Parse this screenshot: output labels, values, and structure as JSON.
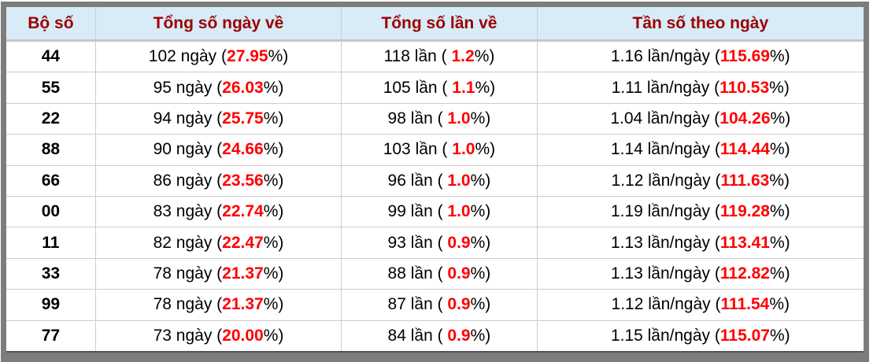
{
  "colors": {
    "header_bg": "#d8ecf8",
    "header_text": "#9b0000",
    "highlight_red": "#ff0000",
    "body_text": "#000000",
    "frame_gray": "#7d7d7d",
    "grid_line": "#cccccc"
  },
  "format": {
    "open_paren": "(",
    "open_paren_spaced": "( ",
    "close_pct": "%)"
  },
  "units": {
    "days": "ngày",
    "times": "lần",
    "freq": "lần/ngày"
  },
  "chart_data": {
    "type": "table",
    "title": "",
    "headers": [
      "Bộ số",
      "Tổng số ngày về",
      "Tổng số lần về",
      "Tần số theo ngày"
    ],
    "rows": [
      {
        "pair": "44",
        "days": "102",
        "days_pct": "27.95",
        "times": "118",
        "times_pct": "1.2",
        "freq": "1.16",
        "freq_pct": "115.69"
      },
      {
        "pair": "55",
        "days": "95",
        "days_pct": "26.03",
        "times": "105",
        "times_pct": "1.1",
        "freq": "1.11",
        "freq_pct": "110.53"
      },
      {
        "pair": "22",
        "days": "94",
        "days_pct": "25.75",
        "times": "98",
        "times_pct": "1.0",
        "freq": "1.04",
        "freq_pct": "104.26"
      },
      {
        "pair": "88",
        "days": "90",
        "days_pct": "24.66",
        "times": "103",
        "times_pct": "1.0",
        "freq": "1.14",
        "freq_pct": "114.44"
      },
      {
        "pair": "66",
        "days": "86",
        "days_pct": "23.56",
        "times": "96",
        "times_pct": "1.0",
        "freq": "1.12",
        "freq_pct": "111.63"
      },
      {
        "pair": "00",
        "days": "83",
        "days_pct": "22.74",
        "times": "99",
        "times_pct": "1.0",
        "freq": "1.19",
        "freq_pct": "119.28"
      },
      {
        "pair": "11",
        "days": "82",
        "days_pct": "22.47",
        "times": "93",
        "times_pct": "0.9",
        "freq": "1.13",
        "freq_pct": "113.41"
      },
      {
        "pair": "33",
        "days": "78",
        "days_pct": "21.37",
        "times": "88",
        "times_pct": "0.9",
        "freq": "1.13",
        "freq_pct": "112.82"
      },
      {
        "pair": "99",
        "days": "78",
        "days_pct": "21.37",
        "times": "87",
        "times_pct": "0.9",
        "freq": "1.12",
        "freq_pct": "111.54"
      },
      {
        "pair": "77",
        "days": "73",
        "days_pct": "20.00",
        "times": "84",
        "times_pct": "0.9",
        "freq": "1.15",
        "freq_pct": "115.07"
      }
    ]
  }
}
